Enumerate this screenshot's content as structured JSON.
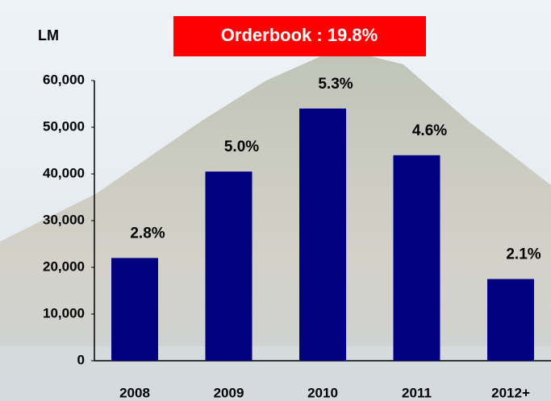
{
  "chart_data": {
    "type": "bar",
    "title": "Orderbook : 19.8%",
    "y_label": "LM",
    "categories": [
      "2008",
      "2009",
      "2010",
      "2011",
      "2012+"
    ],
    "values": [
      22000,
      40500,
      54000,
      44000,
      17500
    ],
    "annotations": [
      "2.8%",
      "5.0%",
      "5.3%",
      "4.6%",
      "2.1%"
    ],
    "color": "#000080",
    "title_box_color": "#ff0000",
    "ylim": [
      0,
      60000
    ],
    "yticks": [
      {
        "value": 0,
        "label": "0"
      },
      {
        "value": 10000,
        "label": "10,000"
      },
      {
        "value": 20000,
        "label": "20,000"
      },
      {
        "value": 30000,
        "label": "30,000"
      },
      {
        "value": 40000,
        "label": "40,000"
      },
      {
        "value": 50000,
        "label": "50,000"
      },
      {
        "value": 60000,
        "label": "60,000"
      }
    ],
    "grid": false
  }
}
